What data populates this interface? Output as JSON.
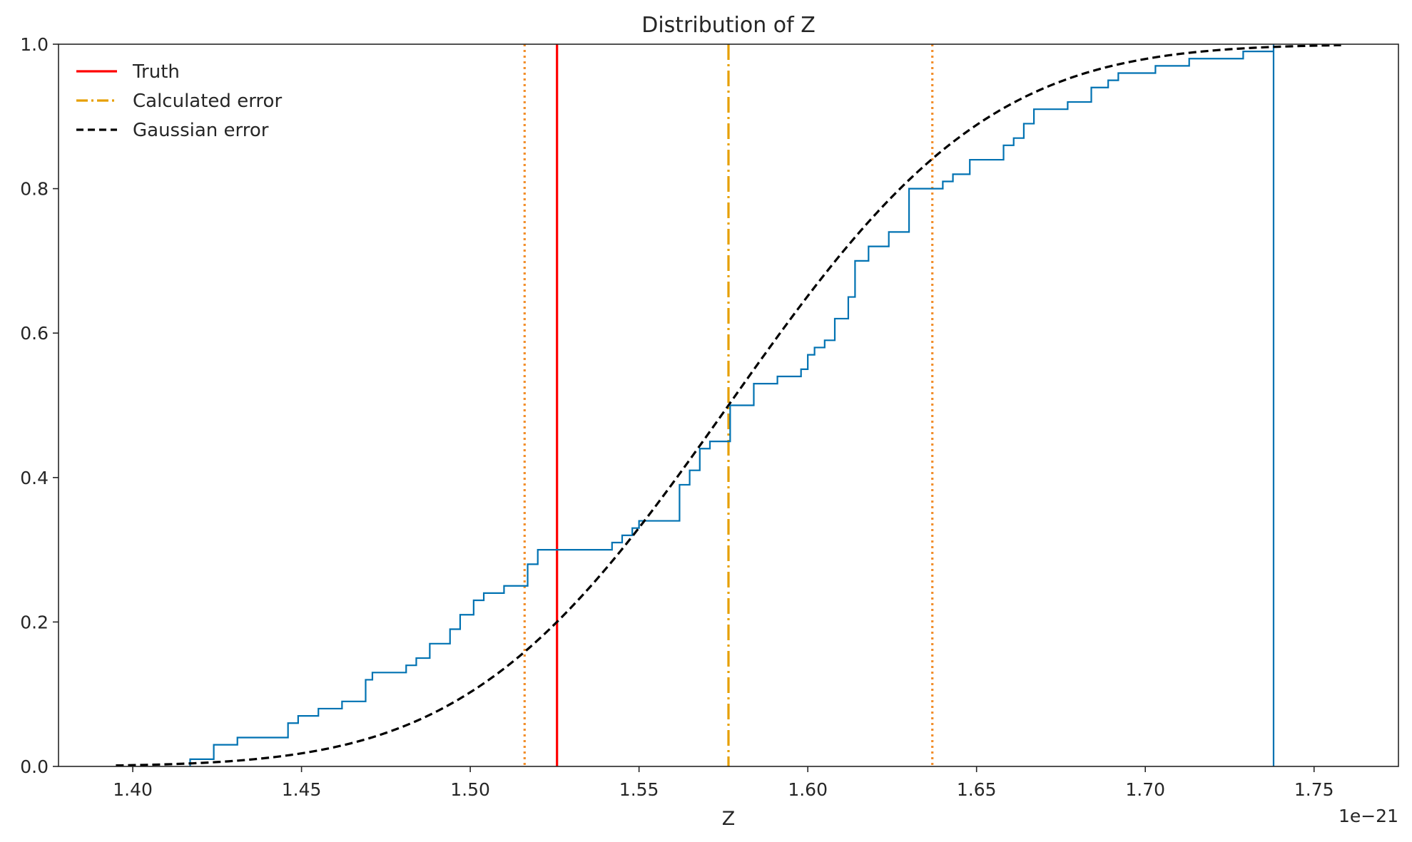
{
  "chart_data": {
    "type": "line",
    "title": "Distribution of Z",
    "xlabel": "Z",
    "ylabel": "",
    "x_offset_label": "1e−21",
    "xlim": [
      1.378,
      1.775
    ],
    "ylim": [
      0.0,
      1.0
    ],
    "xticks": [
      1.4,
      1.45,
      1.5,
      1.55,
      1.6,
      1.65,
      1.7,
      1.75
    ],
    "xtick_labels": [
      "1.40",
      "1.45",
      "1.50",
      "1.55",
      "1.60",
      "1.65",
      "1.70",
      "1.75"
    ],
    "yticks": [
      0.0,
      0.2,
      0.4,
      0.6,
      0.8,
      1.0
    ],
    "ytick_labels": [
      "0.0",
      "0.2",
      "0.4",
      "0.6",
      "0.8",
      "1.0"
    ],
    "grid": false,
    "legend": {
      "placement": "top-left",
      "entries": [
        "Truth",
        "Calculated error",
        "Gaussian error"
      ]
    },
    "series": [
      {
        "kind": "ecdf-step",
        "color": "#0072b2",
        "x": [
          1.417,
          1.424,
          1.431,
          1.446,
          1.449,
          1.455,
          1.462,
          1.469,
          1.471,
          1.474,
          1.481,
          1.484,
          1.488,
          1.494,
          1.497,
          1.501,
          1.504,
          1.51,
          1.517,
          1.52,
          1.542,
          1.545,
          1.548,
          1.55,
          1.562,
          1.565,
          1.568,
          1.571,
          1.577,
          1.584,
          1.591,
          1.598,
          1.6,
          1.602,
          1.605,
          1.608,
          1.612,
          1.614,
          1.618,
          1.624,
          1.63,
          1.64,
          1.643,
          1.648,
          1.658,
          1.661,
          1.664,
          1.667,
          1.677,
          1.684,
          1.689,
          1.692,
          1.703,
          1.713,
          1.729,
          1.738
        ],
        "y": [
          0.01,
          0.03,
          0.04,
          0.06,
          0.07,
          0.08,
          0.09,
          0.12,
          0.13,
          0.13,
          0.14,
          0.15,
          0.17,
          0.19,
          0.21,
          0.23,
          0.24,
          0.25,
          0.28,
          0.3,
          0.31,
          0.32,
          0.33,
          0.34,
          0.39,
          0.41,
          0.44,
          0.45,
          0.5,
          0.53,
          0.54,
          0.55,
          0.57,
          0.58,
          0.59,
          0.62,
          0.65,
          0.7,
          0.72,
          0.74,
          0.8,
          0.81,
          0.82,
          0.84,
          0.86,
          0.87,
          0.89,
          0.91,
          0.92,
          0.94,
          0.95,
          0.96,
          0.97,
          0.98,
          0.99,
          1.0
        ],
        "x_end": 1.738
      },
      {
        "name": "Gaussian error",
        "kind": "gaussian-cdf",
        "color": "#000000",
        "mean": 1.5765,
        "sigma": 0.0604,
        "x_range": [
          1.395,
          1.758
        ]
      }
    ],
    "vlines": [
      {
        "name": "Truth",
        "x": 1.5257,
        "color": "#ff0000",
        "style": "solid"
      },
      {
        "name": "Calculated error",
        "x": 1.5765,
        "color": "#e69f00",
        "style": "dashdot"
      },
      {
        "x": 1.5161,
        "color": "#f28e2b",
        "style": "dotted"
      },
      {
        "x": 1.6369,
        "color": "#f28e2b",
        "style": "dotted"
      }
    ]
  }
}
